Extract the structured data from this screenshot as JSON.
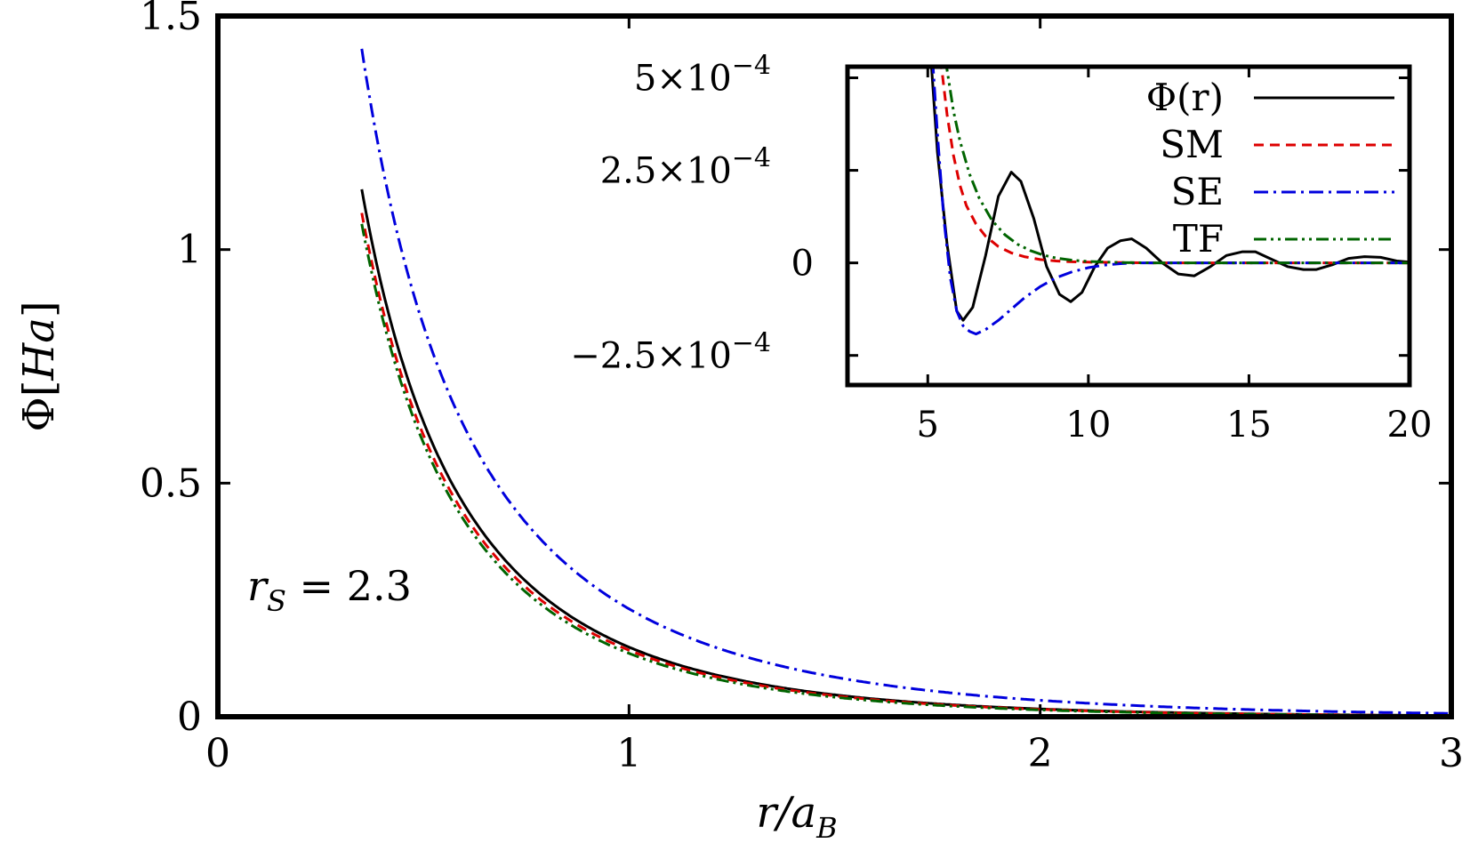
{
  "chart_data": [
    {
      "id": "main",
      "type": "line",
      "xlabel": "r/a_B",
      "ylabel": "Φ[Ha]",
      "xlim": [
        0,
        3
      ],
      "ylim": [
        0,
        1.5
      ],
      "x_ticks": [
        0,
        1,
        2,
        3
      ],
      "x_tick_labels": [
        "0",
        "1",
        "2",
        "3"
      ],
      "y_ticks": [
        0,
        0.5,
        1,
        1.5
      ],
      "y_tick_labels": [
        "0",
        "0.5",
        "1",
        "1.5"
      ],
      "annotation": "r_S = 2.3",
      "grid": false,
      "series": [
        {
          "key": "phi",
          "color": "#000000",
          "dash": "none",
          "coef": 0.668,
          "kappa": 1.5
        },
        {
          "key": "sm",
          "color": "#dd0000",
          "dash": "11,7",
          "coef": 0.638,
          "kappa": 1.5
        },
        {
          "key": "se",
          "color": "#0000dd",
          "dash": "16,6,3,6",
          "coef": 0.759,
          "kappa": 1.19
        },
        {
          "key": "tf",
          "color": "#006400",
          "dash": "14,5,3,5,3,5",
          "coef": 0.633,
          "kappa": 1.54
        }
      ]
    },
    {
      "id": "inset",
      "type": "line",
      "xlim": [
        2.5,
        20
      ],
      "ylim": [
        -0.00033,
        0.00053
      ],
      "x_ticks": [
        5,
        10,
        15,
        20
      ],
      "x_tick_labels": [
        "5",
        "10",
        "15",
        "20"
      ],
      "y_ticks": [
        -0.00025,
        0,
        0.00025,
        0.0005
      ],
      "y_tick_labels": [
        "−2.5×10",
        "0",
        "2.5×10",
        "5×10"
      ],
      "y_tick_exponent": "−4",
      "legend_position": "top-right",
      "series": [
        {
          "key": "phi",
          "name": "Φ(r)",
          "color": "#000000",
          "dash": "none"
        },
        {
          "key": "sm",
          "name": "SM",
          "color": "#dd0000",
          "dash": "11,7"
        },
        {
          "key": "se",
          "name": "SE",
          "color": "#0000dd",
          "dash": "16,6,3,6"
        },
        {
          "key": "tf",
          "name": "TF",
          "color": "#006400",
          "dash": "14,5,3,5,3,5"
        }
      ],
      "curves": {
        "phi": {
          "x": [
            5.1,
            5.3,
            5.6,
            5.9,
            6.1,
            6.4,
            6.8,
            7.2,
            7.6,
            7.9,
            8.3,
            8.7,
            9.1,
            9.45,
            9.8,
            10.2,
            10.6,
            11.0,
            11.35,
            11.8,
            12.3,
            12.8,
            13.3,
            13.8,
            14.3,
            14.8,
            15.2,
            15.7,
            16.2,
            16.7,
            17.1,
            17.6,
            18.1,
            18.6,
            19.1,
            19.6,
            20.0
          ],
          "y": [
            0.00055,
            0.0003,
            5e-05,
            -0.00013,
            -0.000155,
            -0.00012,
            2e-05,
            0.00018,
            0.000245,
            0.00022,
            0.00012,
            -1e-05,
            -8.5e-05,
            -0.000105,
            -8e-05,
            -1e-05,
            4e-05,
            6e-05,
            6.5e-05,
            4e-05,
            0.0,
            -3e-05,
            -3.5e-05,
            -1e-05,
            2e-05,
            3e-05,
            3e-05,
            1e-05,
            -1e-05,
            -1.8e-05,
            -1.8e-05,
            -5e-06,
            1.2e-05,
            1.7e-05,
            1.5e-05,
            5e-06,
            2e-06
          ]
        },
        "sm": {
          "x": [
            5.4,
            5.6,
            5.8,
            6.0,
            6.2,
            6.5,
            6.8,
            7.2,
            7.6,
            8.0,
            8.5,
            9.0,
            9.5,
            10.0,
            11.0,
            12.0,
            14.0,
            16.0,
            18.0,
            20.0
          ],
          "y": [
            0.00055,
            0.0004,
            0.00029,
            0.00021,
            0.000155,
            0.000105,
            7.2e-05,
            4.4e-05,
            2.7e-05,
            1.7e-05,
            9e-06,
            5e-06,
            3e-06,
            2e-06,
            1e-06,
            0.0,
            0.0,
            0.0,
            0.0,
            0.0
          ]
        },
        "se": {
          "x": [
            5.15,
            5.3,
            5.5,
            5.7,
            5.9,
            6.1,
            6.3,
            6.5,
            6.8,
            7.2,
            7.6,
            8.0,
            8.5,
            9.0,
            9.5,
            10.0,
            10.5,
            11.0,
            11.5,
            12.0,
            12.5,
            13.0,
            14.0,
            15.0,
            16.0,
            18.0,
            20.0
          ],
          "y": [
            0.00055,
            0.00035,
            0.00012,
            -4e-05,
            -0.00013,
            -0.00017,
            -0.000185,
            -0.000192,
            -0.00018,
            -0.000155,
            -0.000125,
            -9.5e-05,
            -6.4e-05,
            -4e-05,
            -2.4e-05,
            -1.3e-05,
            -6e-06,
            -2e-06,
            0.0,
            0.0,
            0.0,
            0.0,
            0.0,
            0.0,
            0.0,
            0.0,
            0.0
          ]
        },
        "tf": {
          "x": [
            5.55,
            5.8,
            6.0,
            6.3,
            6.6,
            7.0,
            7.4,
            7.8,
            8.2,
            8.6,
            9.0,
            9.5,
            10.0,
            11.0,
            12.0,
            14.0,
            16.0,
            18.0,
            20.0
          ],
          "y": [
            0.00055,
            0.00041,
            0.00033,
            0.00024,
            0.000175,
            0.000115,
            7.6e-05,
            5e-05,
            3.3e-05,
            2.1e-05,
            1.3e-05,
            7e-06,
            4e-06,
            1e-06,
            0.0,
            0.0,
            0.0,
            0.0,
            0.0
          ]
        }
      }
    }
  ]
}
